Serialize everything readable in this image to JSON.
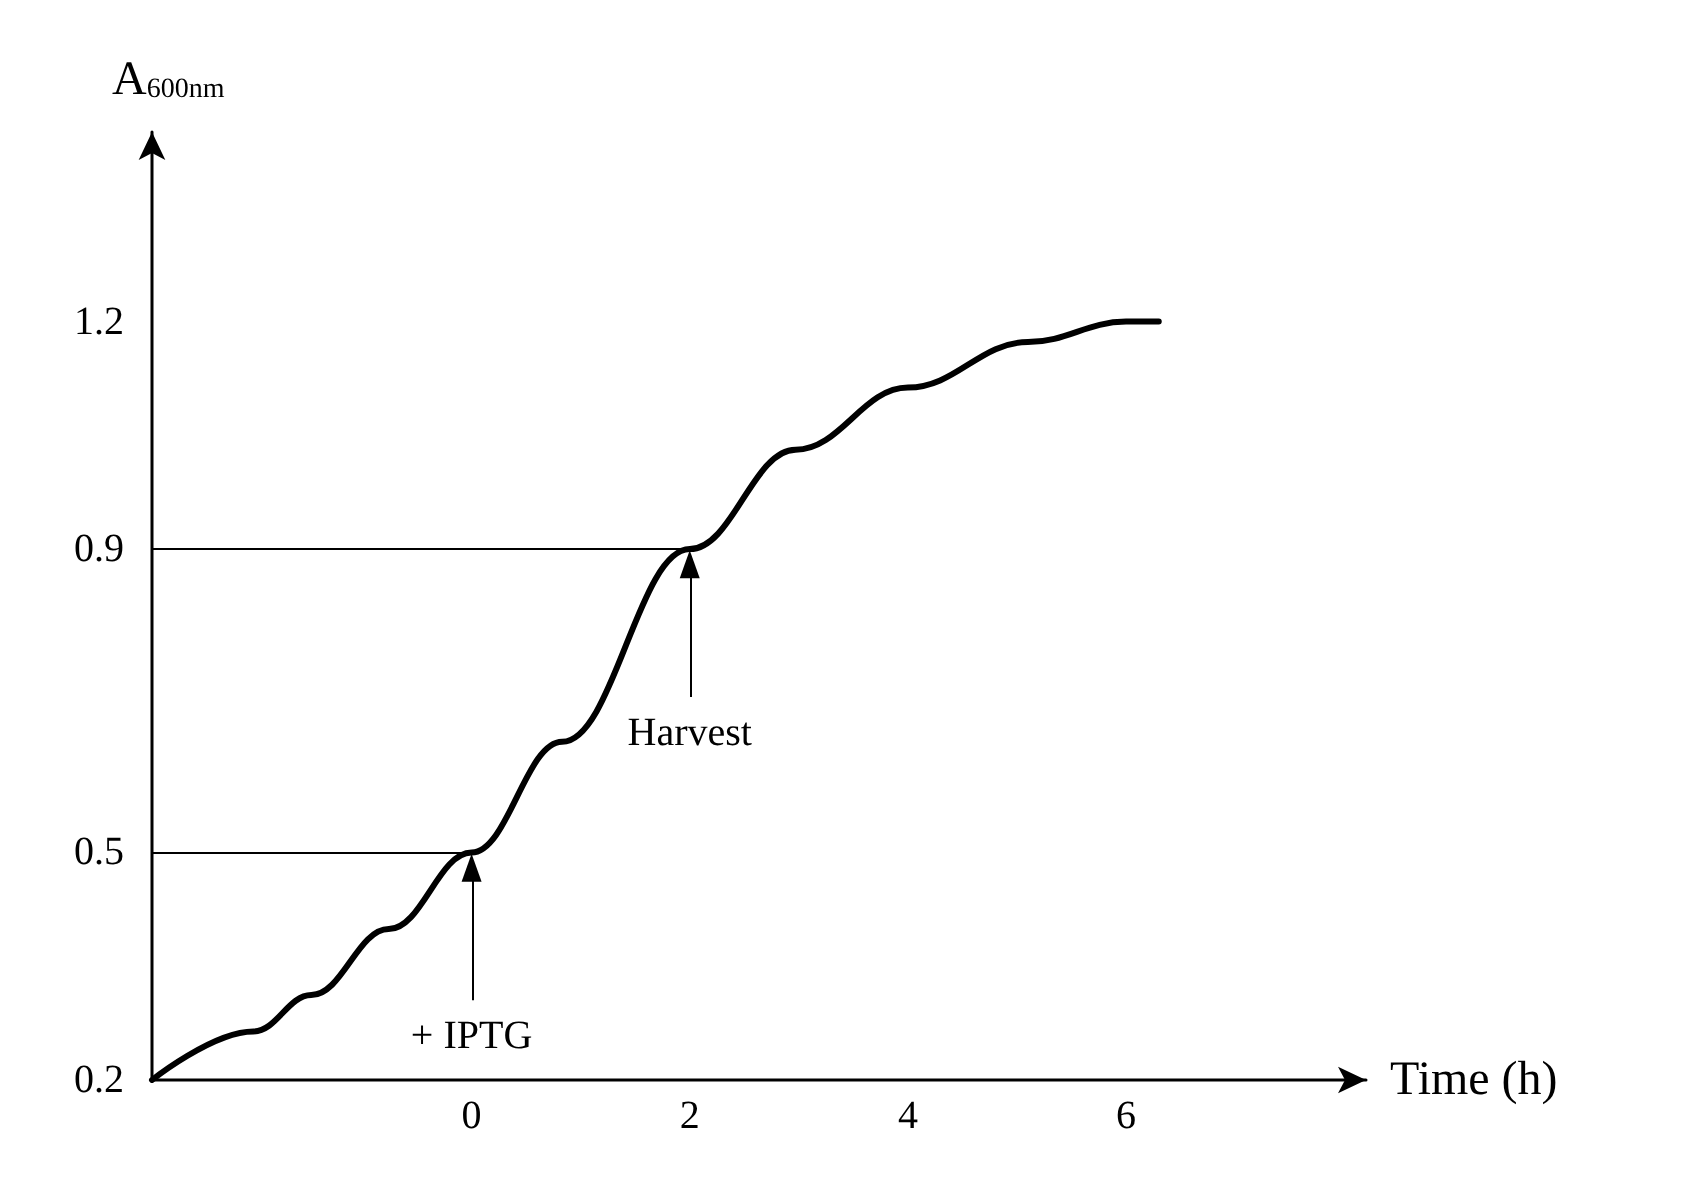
{
  "chart_data": {
    "type": "line",
    "xlabel": "Time (h)",
    "ylabel": "A$_{600nm}$",
    "x": [
      -2.93,
      -2.0,
      -1.47,
      -0.76,
      0,
      0.83,
      2,
      2.97,
      4,
      5.1,
      6,
      6.3
    ],
    "series": [
      {
        "color": "#000000",
        "values": [
          0.2,
          0.264,
          0.312,
          0.399,
          0.5,
          0.646,
          0.9,
          1.031,
          1.113,
          1.173,
          1.2,
          1.2
        ]
      }
    ],
    "xlim": [
      -2.93,
      8.2
    ],
    "xticks": [
      0,
      2,
      4,
      6
    ],
    "ylim": [
      0.2,
      1.45
    ],
    "yticks": [
      0.2,
      0.5,
      0.9,
      1.2
    ],
    "ref_lines": [
      {
        "axis": "y",
        "value": 0.5,
        "color": "#000000"
      },
      {
        "axis": "y",
        "value": 0.9,
        "color": "#000000"
      }
    ],
    "annotations": [
      {
        "text": "+ IPTG",
        "x": 0,
        "y": 0.5
      },
      {
        "text": "Harvest",
        "x": 2,
        "y": 0.9
      }
    ],
    "grid": false,
    "marker": "none",
    "line_style": "solid"
  }
}
